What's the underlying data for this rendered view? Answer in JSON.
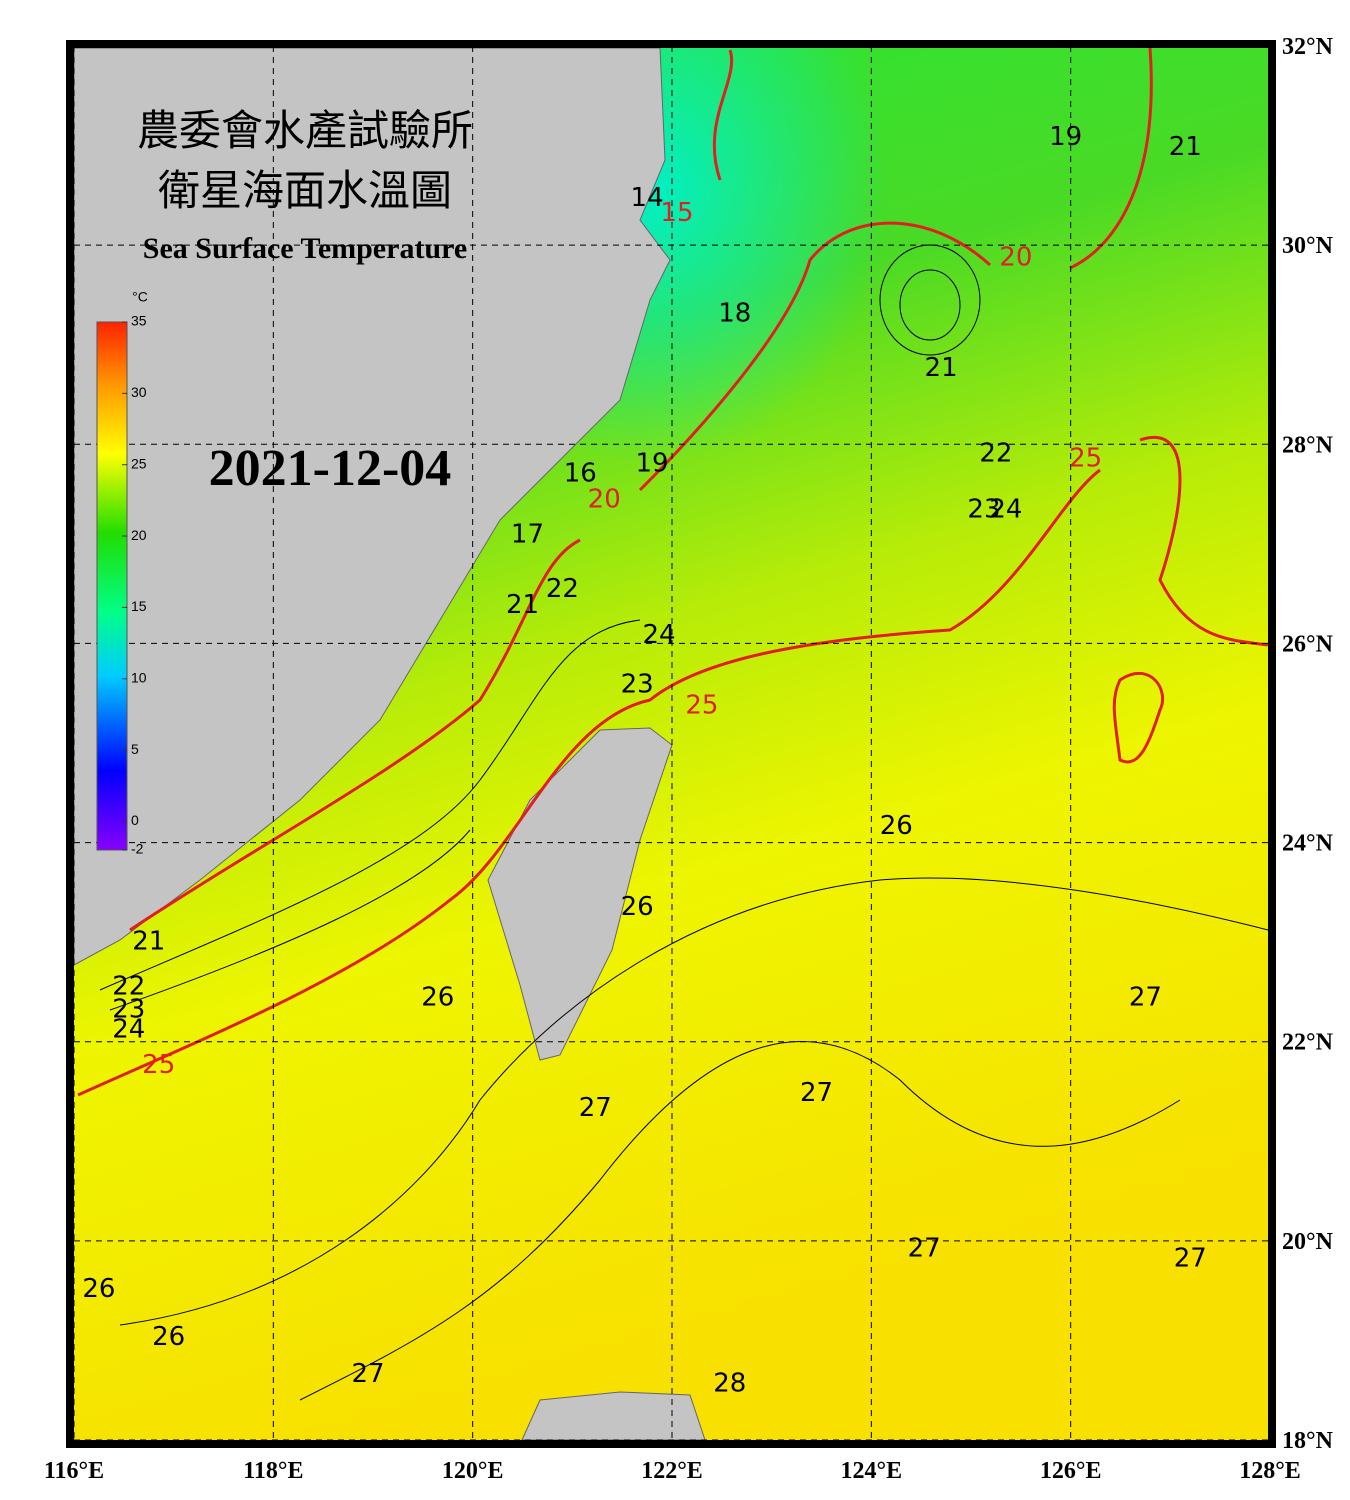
{
  "header": {
    "title_zh": "農委會水產試驗所",
    "subtitle_zh": "衛星海面水溫圖",
    "title_en": "Sea Surface Temperature",
    "date": "2021-12-04"
  },
  "map": {
    "lon_range": [
      116,
      128
    ],
    "lat_range": [
      18,
      32
    ],
    "lon_ticks": [
      {
        "value": 116,
        "label": "116°E"
      },
      {
        "value": 118,
        "label": "118°E"
      },
      {
        "value": 120,
        "label": "120°E"
      },
      {
        "value": 122,
        "label": "122°E"
      },
      {
        "value": 124,
        "label": "124°E"
      },
      {
        "value": 126,
        "label": "126°E"
      },
      {
        "value": 128,
        "label": "128°E"
      }
    ],
    "lat_ticks": [
      {
        "value": 18,
        "label": "18°N"
      },
      {
        "value": 20,
        "label": "20°N"
      },
      {
        "value": 22,
        "label": "22°N"
      },
      {
        "value": 24,
        "label": "24°N"
      },
      {
        "value": 26,
        "label": "26°N"
      },
      {
        "value": 28,
        "label": "28°N"
      },
      {
        "value": 30,
        "label": "30°N"
      },
      {
        "value": 32,
        "label": "32°N"
      }
    ],
    "contour_labels": [
      {
        "value": 14,
        "lon": 121.75,
        "lat": 30.47
      },
      {
        "value": 15,
        "lon": 122.05,
        "lat": 30.32
      },
      {
        "value": 18,
        "lon": 122.63,
        "lat": 29.31
      },
      {
        "value": 19,
        "lon": 125.95,
        "lat": 31.08
      },
      {
        "value": 21,
        "lon": 127.15,
        "lat": 30.98
      },
      {
        "value": 20,
        "lon": 125.45,
        "lat": 29.87
      },
      {
        "value": 21,
        "lon": 124.7,
        "lat": 28.76
      },
      {
        "value": 22,
        "lon": 125.25,
        "lat": 27.9
      },
      {
        "value": 25,
        "lon": 126.15,
        "lat": 27.85
      },
      {
        "value": 23,
        "lon": 125.13,
        "lat": 27.34
      },
      {
        "value": 24,
        "lon": 125.35,
        "lat": 27.34
      },
      {
        "value": 19,
        "lon": 121.8,
        "lat": 27.8
      },
      {
        "value": 16,
        "lon": 121.08,
        "lat": 27.7
      },
      {
        "value": 20,
        "lon": 121.32,
        "lat": 27.44
      },
      {
        "value": 17,
        "lon": 120.55,
        "lat": 27.09
      },
      {
        "value": 21,
        "lon": 120.5,
        "lat": 26.38
      },
      {
        "value": 22,
        "lon": 120.9,
        "lat": 26.54
      },
      {
        "value": 24,
        "lon": 121.87,
        "lat": 26.08
      },
      {
        "value": 23,
        "lon": 121.65,
        "lat": 25.58
      },
      {
        "value": 25,
        "lon": 122.3,
        "lat": 25.37
      },
      {
        "value": 26,
        "lon": 124.25,
        "lat": 24.16
      },
      {
        "value": 26,
        "lon": 121.65,
        "lat": 23.35
      },
      {
        "value": 21,
        "lon": 116.75,
        "lat": 23.0
      },
      {
        "value": 22,
        "lon": 116.55,
        "lat": 22.55
      },
      {
        "value": 23,
        "lon": 116.55,
        "lat": 22.32
      },
      {
        "value": 24,
        "lon": 116.55,
        "lat": 22.12
      },
      {
        "value": 25,
        "lon": 116.85,
        "lat": 21.76
      },
      {
        "value": 26,
        "lon": 119.65,
        "lat": 22.44
      },
      {
        "value": 27,
        "lon": 126.75,
        "lat": 22.44
      },
      {
        "value": 27,
        "lon": 121.23,
        "lat": 21.33
      },
      {
        "value": 27,
        "lon": 123.45,
        "lat": 21.48
      },
      {
        "value": 27,
        "lon": 124.53,
        "lat": 19.92
      },
      {
        "value": 27,
        "lon": 127.2,
        "lat": 19.82
      },
      {
        "value": 26,
        "lon": 116.25,
        "lat": 19.51
      },
      {
        "value": 26,
        "lon": 116.95,
        "lat": 19.03
      },
      {
        "value": 27,
        "lon": 118.95,
        "lat": 18.66
      },
      {
        "value": 28,
        "lon": 122.58,
        "lat": 18.56
      }
    ]
  },
  "colorbar": {
    "unit": "°C",
    "lim": [
      -2,
      35
    ],
    "ticks": [
      -2,
      0,
      5,
      10,
      15,
      20,
      25,
      30,
      35
    ]
  }
}
